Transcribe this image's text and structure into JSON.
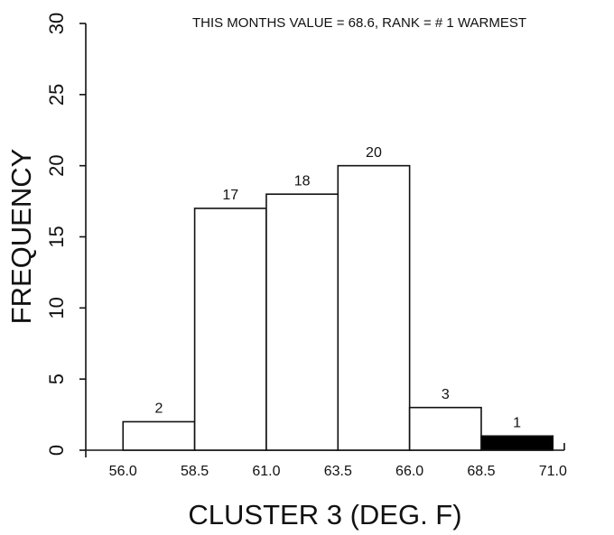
{
  "chart_data": {
    "type": "histogram",
    "title": "THIS MONTHS VALUE =  68.6, RANK = #  1 WARMEST",
    "xlabel": "CLUSTER 3  (DEG. F)",
    "ylabel": "FREQUENCY",
    "bins": [
      56,
      58.5,
      61,
      63.5,
      66,
      68.5,
      71
    ],
    "values": [
      2,
      17,
      18,
      20,
      3,
      1
    ],
    "colors": [
      "#ffffff",
      "#ffffff",
      "#ffffff",
      "#ffffff",
      "#ffffff",
      "#000000"
    ],
    "xlim": [
      54.7,
      71.4
    ],
    "xticks": [
      {
        "value": 56,
        "label": "56.0"
      },
      {
        "value": 58.5,
        "label": "58.5"
      },
      {
        "value": 61,
        "label": "61.0"
      },
      {
        "value": 63.5,
        "label": "63.5"
      },
      {
        "value": 66,
        "label": "66.0"
      },
      {
        "value": 68.5,
        "label": "68.5"
      },
      {
        "value": 71,
        "label": "71.0"
      }
    ],
    "ylim": [
      0,
      30
    ],
    "yticks": [
      0,
      5,
      10,
      15,
      20,
      25,
      30
    ]
  }
}
